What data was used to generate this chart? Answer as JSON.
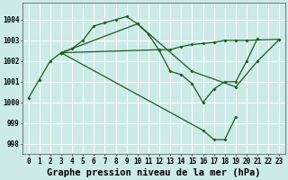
{
  "bg_color": "#cceae8",
  "grid_color": "#ffffff",
  "line_color": "#1a5c1a",
  "title": "Graphe pression niveau de la mer (hPa)",
  "hours": [
    0,
    1,
    2,
    3,
    4,
    5,
    6,
    7,
    8,
    9,
    10,
    11,
    12,
    13,
    14,
    15,
    16,
    17,
    18,
    19,
    20,
    21,
    22,
    23
  ],
  "ylim": [
    997.5,
    1004.8
  ],
  "yticks": [
    998,
    999,
    1000,
    1001,
    1002,
    1003,
    1004
  ],
  "s1_x": [
    0,
    1,
    2,
    3,
    4,
    5,
    6,
    7,
    8,
    9,
    10,
    11,
    12,
    13,
    14,
    15,
    16,
    17,
    18,
    19,
    20,
    21
  ],
  "s1_y": [
    1000.2,
    1001.1,
    1002.0,
    1002.4,
    1002.6,
    1003.0,
    1003.7,
    1003.85,
    1004.0,
    1004.15,
    1003.8,
    1003.3,
    1002.5,
    1001.5,
    1001.35,
    1000.9,
    1000.0,
    1000.65,
    1001.0,
    1001.0,
    1002.0,
    1003.1
  ],
  "s2_x": [
    3,
    12,
    13,
    14,
    15,
    16,
    17,
    18,
    19,
    20,
    23
  ],
  "s2_y": [
    1002.4,
    1002.55,
    1002.55,
    1002.7,
    1002.8,
    1002.85,
    1002.9,
    1003.0,
    1003.0,
    1003.0,
    1003.05
  ],
  "s3_x": [
    3,
    10,
    15,
    19,
    21,
    23
  ],
  "s3_y": [
    1002.4,
    1003.8,
    1001.5,
    1000.75,
    1002.0,
    1003.05
  ],
  "s4_x": [
    3,
    16,
    17,
    18,
    19
  ],
  "s4_y": [
    1002.4,
    998.65,
    998.2,
    998.2,
    999.3
  ],
  "markersize": 2.0,
  "linewidth": 0.9,
  "tick_fontsize": 5.5,
  "title_fontsize": 7.5
}
